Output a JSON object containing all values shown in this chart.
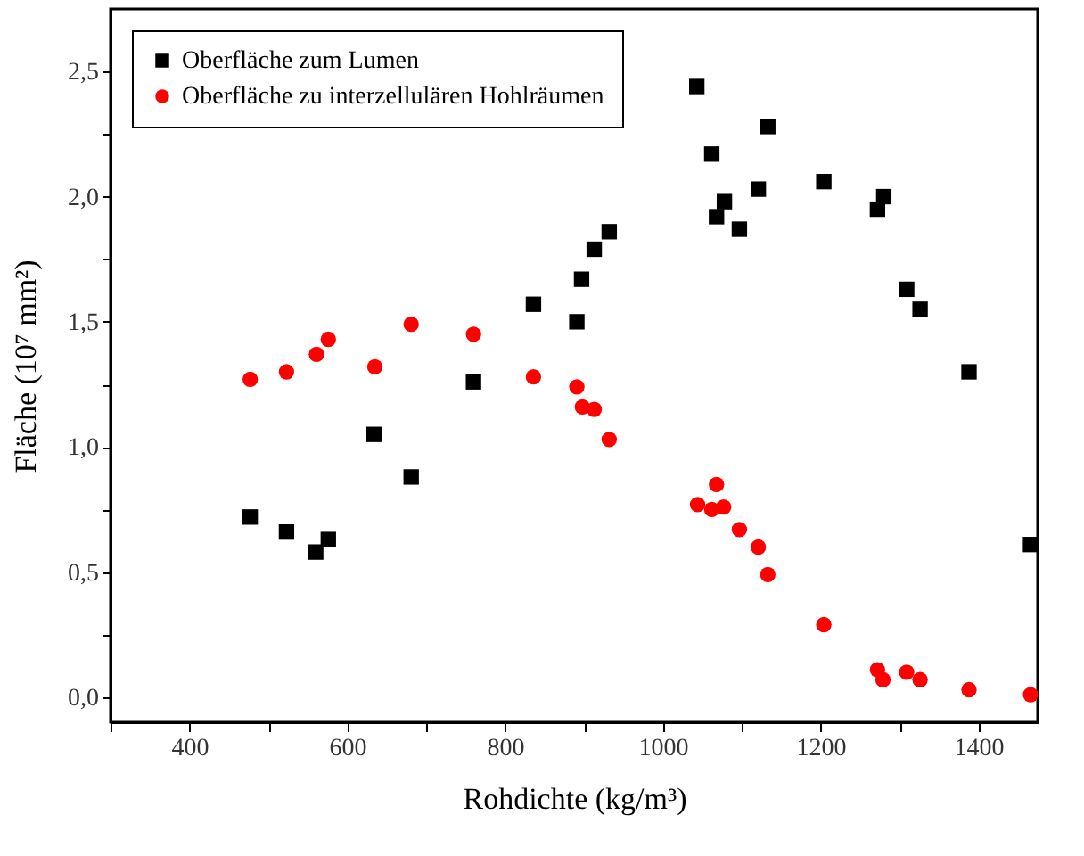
{
  "chart_data": {
    "type": "scatter",
    "xlabel": "Rohdichte (kg/m³)",
    "ylabel": "Fläche (10⁷ mm²)",
    "xlim": [
      300,
      1475
    ],
    "ylim": [
      -0.1,
      2.75
    ],
    "xticks": [
      {
        "value": 300,
        "label": null
      },
      400,
      {
        "value": 500,
        "label": null
      },
      600,
      {
        "value": 700,
        "label": null
      },
      800,
      {
        "value": 900,
        "label": null
      },
      1000,
      {
        "value": 1100,
        "label": null
      },
      1200,
      {
        "value": 1300,
        "label": null
      },
      1400
    ],
    "yticks": [
      {
        "value": 0,
        "label": "0,0"
      },
      {
        "value": 0.25,
        "label": null
      },
      {
        "value": 0.5,
        "label": "0,5"
      },
      {
        "value": 0.75,
        "label": null
      },
      {
        "value": 1,
        "label": "1,0"
      },
      {
        "value": 1.25,
        "label": null
      },
      {
        "value": 1.5,
        "label": "1,5"
      },
      {
        "value": 1.75,
        "label": null
      },
      {
        "value": 2,
        "label": "2,0"
      },
      {
        "value": 2.25,
        "label": null
      },
      {
        "value": 2.5,
        "label": "2,5"
      }
    ],
    "grid": false,
    "legend": "top left",
    "series": [
      {
        "name": "Oberfläche zum Lumen",
        "color": "#000000",
        "marker": "square",
        "x": [
          477,
          523,
          560,
          576,
          634,
          681,
          760,
          836,
          891,
          897,
          913,
          932,
          1043,
          1062,
          1068,
          1078,
          1097,
          1121,
          1133,
          1204,
          1272,
          1280,
          1309,
          1326,
          1388,
          1466
        ],
        "values": [
          0.72,
          0.66,
          0.58,
          0.63,
          1.05,
          0.88,
          1.26,
          1.57,
          1.5,
          1.67,
          1.79,
          1.86,
          2.44,
          2.17,
          1.92,
          1.98,
          1.87,
          2.03,
          2.28,
          2.06,
          1.95,
          2.0,
          1.63,
          1.55,
          1.3,
          0.61
        ]
      },
      {
        "name": "Oberfläche zu interzellulären Hohlräumen",
        "color": "#ff0000",
        "marker": "circle",
        "x": [
          477,
          523,
          561,
          576,
          635,
          681,
          760,
          836,
          891,
          898,
          913,
          932,
          1044,
          1062,
          1068,
          1077,
          1097,
          1121,
          1133,
          1204,
          1272,
          1279,
          1309,
          1326,
          1388,
          1466
        ],
        "values": [
          1.27,
          1.3,
          1.37,
          1.43,
          1.32,
          1.49,
          1.45,
          1.28,
          1.24,
          1.16,
          1.15,
          1.03,
          0.77,
          0.75,
          0.85,
          0.76,
          0.67,
          0.6,
          0.49,
          0.29,
          0.11,
          0.07,
          0.1,
          0.07,
          0.03,
          0.01
        ]
      }
    ]
  }
}
